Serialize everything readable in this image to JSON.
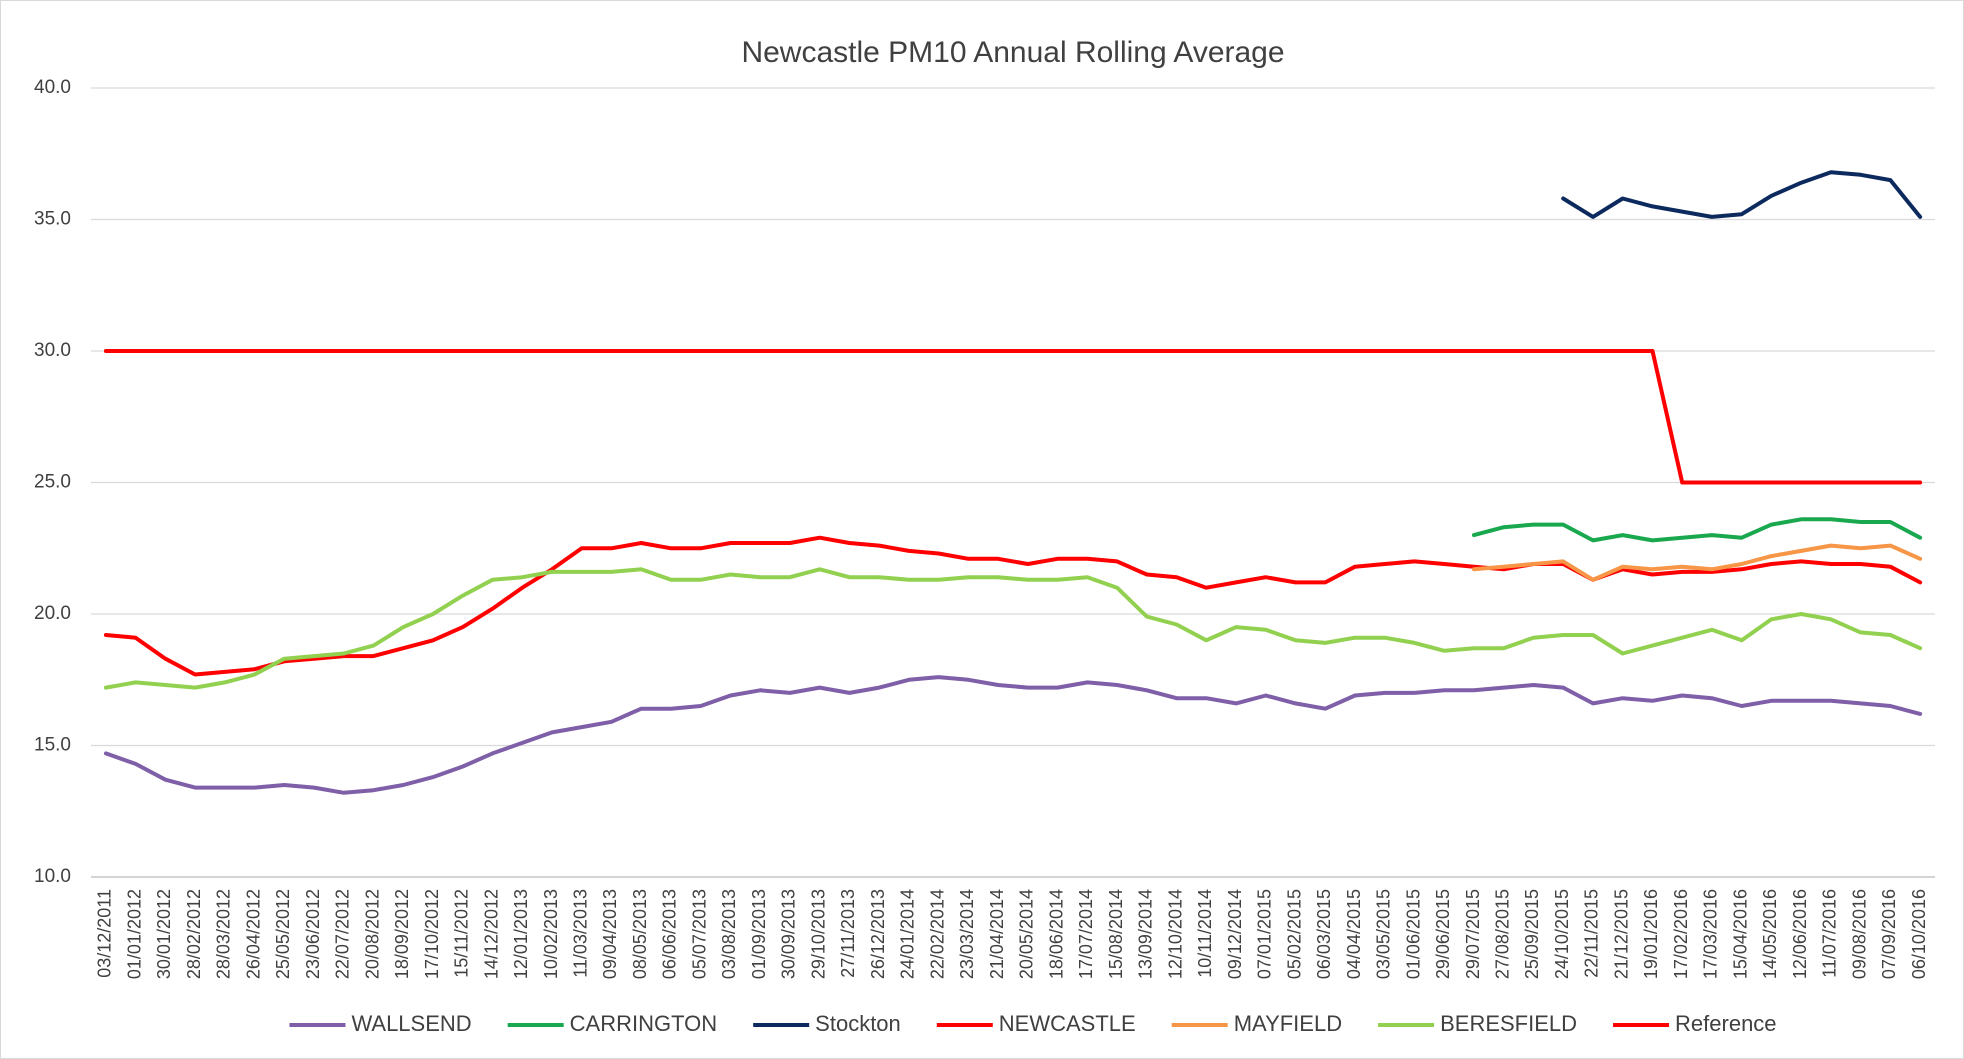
{
  "chart_data": {
    "type": "line",
    "title": "Newcastle PM10 Annual Rolling Average",
    "categories": [
      "03/12/2011",
      "01/01/2012",
      "30/01/2012",
      "28/02/2012",
      "28/03/2012",
      "26/04/2012",
      "25/05/2012",
      "23/06/2012",
      "22/07/2012",
      "20/08/2012",
      "18/09/2012",
      "17/10/2012",
      "15/11/2012",
      "14/12/2012",
      "12/01/2013",
      "10/02/2013",
      "11/03/2013",
      "09/04/2013",
      "08/05/2013",
      "06/06/2013",
      "05/07/2013",
      "03/08/2013",
      "01/09/2013",
      "30/09/2013",
      "29/10/2013",
      "27/11/2013",
      "26/12/2013",
      "24/01/2014",
      "22/02/2014",
      "23/03/2014",
      "21/04/2014",
      "20/05/2014",
      "18/06/2014",
      "17/07/2014",
      "15/08/2014",
      "13/09/2014",
      "12/10/2014",
      "10/11/2014",
      "09/12/2014",
      "07/01/2015",
      "05/02/2015",
      "06/03/2015",
      "04/04/2015",
      "03/05/2015",
      "01/06/2015",
      "29/06/2015",
      "29/07/2015",
      "27/08/2015",
      "25/09/2015",
      "24/10/2015",
      "22/11/2015",
      "21/12/2015",
      "19/01/2016",
      "17/02/2016",
      "17/03/2016",
      "15/04/2016",
      "14/05/2016",
      "12/06/2016",
      "11/07/2016",
      "09/08/2016",
      "07/09/2016",
      "06/10/2016"
    ],
    "series": [
      {
        "name": "WALLSEND",
        "color": "#7e5fa8",
        "values": [
          14.7,
          14.3,
          13.7,
          13.4,
          13.4,
          13.4,
          13.5,
          13.4,
          13.2,
          13.3,
          13.5,
          13.8,
          14.2,
          14.7,
          15.1,
          15.5,
          15.7,
          15.9,
          16.4,
          16.4,
          16.5,
          16.9,
          17.1,
          17.0,
          17.2,
          17.0,
          17.2,
          17.5,
          17.6,
          17.5,
          17.3,
          17.2,
          17.2,
          17.4,
          17.3,
          17.1,
          16.8,
          16.8,
          16.6,
          16.9,
          16.6,
          16.4,
          16.9,
          17.0,
          17.0,
          17.1,
          17.1,
          17.2,
          17.3,
          17.2,
          16.6,
          16.8,
          16.7,
          16.9,
          16.8,
          16.5,
          16.7,
          16.7,
          16.7,
          16.6,
          16.5,
          16.2
        ]
      },
      {
        "name": "CARRINGTON",
        "color": "#1aa84f",
        "values": [
          null,
          null,
          null,
          null,
          null,
          null,
          null,
          null,
          null,
          null,
          null,
          null,
          null,
          null,
          null,
          null,
          null,
          null,
          null,
          null,
          null,
          null,
          null,
          null,
          null,
          null,
          null,
          null,
          null,
          null,
          null,
          null,
          null,
          null,
          null,
          null,
          null,
          null,
          null,
          null,
          null,
          null,
          null,
          null,
          null,
          null,
          23.0,
          23.3,
          23.4,
          23.4,
          22.8,
          23.0,
          22.8,
          22.9,
          23.0,
          22.9,
          23.4,
          23.6,
          23.6,
          23.5,
          23.5,
          22.9
        ]
      },
      {
        "name": "Stockton",
        "color": "#0d2a5e",
        "values": [
          null,
          null,
          null,
          null,
          null,
          null,
          null,
          null,
          null,
          null,
          null,
          null,
          null,
          null,
          null,
          null,
          null,
          null,
          null,
          null,
          null,
          null,
          null,
          null,
          null,
          null,
          null,
          null,
          null,
          null,
          null,
          null,
          null,
          null,
          null,
          null,
          null,
          null,
          null,
          null,
          null,
          null,
          null,
          null,
          null,
          null,
          null,
          null,
          null,
          35.8,
          35.1,
          35.8,
          35.5,
          35.3,
          35.1,
          35.2,
          35.9,
          36.4,
          36.8,
          36.7,
          36.5,
          35.1
        ]
      },
      {
        "name": "NEWCASTLE",
        "color": "#ff0000",
        "values": [
          19.2,
          19.1,
          18.3,
          17.7,
          17.8,
          17.9,
          18.2,
          18.3,
          18.4,
          18.4,
          18.7,
          19.0,
          19.5,
          20.2,
          21.0,
          21.7,
          22.5,
          22.5,
          22.7,
          22.5,
          22.5,
          22.7,
          22.7,
          22.7,
          22.9,
          22.7,
          22.6,
          22.4,
          22.3,
          22.1,
          22.1,
          21.9,
          22.1,
          22.1,
          22.0,
          21.5,
          21.4,
          21.0,
          21.2,
          21.4,
          21.2,
          21.2,
          21.8,
          21.9,
          22.0,
          21.9,
          21.8,
          21.7,
          21.9,
          21.9,
          21.3,
          21.7,
          21.5,
          21.6,
          21.6,
          21.7,
          21.9,
          22.0,
          21.9,
          21.9,
          21.8,
          21.2
        ]
      },
      {
        "name": "MAYFIELD",
        "color": "#f79646",
        "values": [
          null,
          null,
          null,
          null,
          null,
          null,
          null,
          null,
          null,
          null,
          null,
          null,
          null,
          null,
          null,
          null,
          null,
          null,
          null,
          null,
          null,
          null,
          null,
          null,
          null,
          null,
          null,
          null,
          null,
          null,
          null,
          null,
          null,
          null,
          null,
          null,
          null,
          null,
          null,
          null,
          null,
          null,
          null,
          null,
          null,
          null,
          21.7,
          21.8,
          21.9,
          22.0,
          21.3,
          21.8,
          21.7,
          21.8,
          21.7,
          21.9,
          22.2,
          22.4,
          22.6,
          22.5,
          22.6,
          22.1
        ]
      },
      {
        "name": "BERESFIELD",
        "color": "#92d050",
        "values": [
          17.2,
          17.4,
          17.3,
          17.2,
          17.4,
          17.7,
          18.3,
          18.4,
          18.5,
          18.8,
          19.5,
          20.0,
          20.7,
          21.3,
          21.4,
          21.6,
          21.6,
          21.6,
          21.7,
          21.3,
          21.3,
          21.5,
          21.4,
          21.4,
          21.7,
          21.4,
          21.4,
          21.3,
          21.3,
          21.4,
          21.4,
          21.3,
          21.3,
          21.4,
          21.0,
          19.9,
          19.6,
          19.0,
          19.5,
          19.4,
          19.0,
          18.9,
          19.1,
          19.1,
          18.9,
          18.6,
          18.7,
          18.7,
          19.1,
          19.2,
          19.2,
          18.5,
          18.8,
          19.1,
          19.4,
          19.0,
          19.8,
          20.0,
          19.8,
          19.3,
          19.2,
          18.7
        ]
      },
      {
        "name": "Reference",
        "color": "#ff0000",
        "values": [
          30,
          30,
          30,
          30,
          30,
          30,
          30,
          30,
          30,
          30,
          30,
          30,
          30,
          30,
          30,
          30,
          30,
          30,
          30,
          30,
          30,
          30,
          30,
          30,
          30,
          30,
          30,
          30,
          30,
          30,
          30,
          30,
          30,
          30,
          30,
          30,
          30,
          30,
          30,
          30,
          30,
          30,
          30,
          30,
          30,
          30,
          30,
          30,
          30,
          30,
          30,
          30,
          30,
          25,
          25,
          25,
          25,
          25,
          25,
          25,
          25,
          25
        ]
      }
    ],
    "ylim": [
      10,
      40
    ],
    "yticks": [
      {
        "value": 10,
        "label": "10.0"
      },
      {
        "value": 15,
        "label": "15.0"
      },
      {
        "value": 20,
        "label": "20.0"
      },
      {
        "value": 25,
        "label": "25.0"
      },
      {
        "value": 30,
        "label": "30.0"
      },
      {
        "value": 35,
        "label": "35.0"
      },
      {
        "value": 40,
        "label": "40.0"
      }
    ],
    "grid": true,
    "legend": "bottom"
  }
}
